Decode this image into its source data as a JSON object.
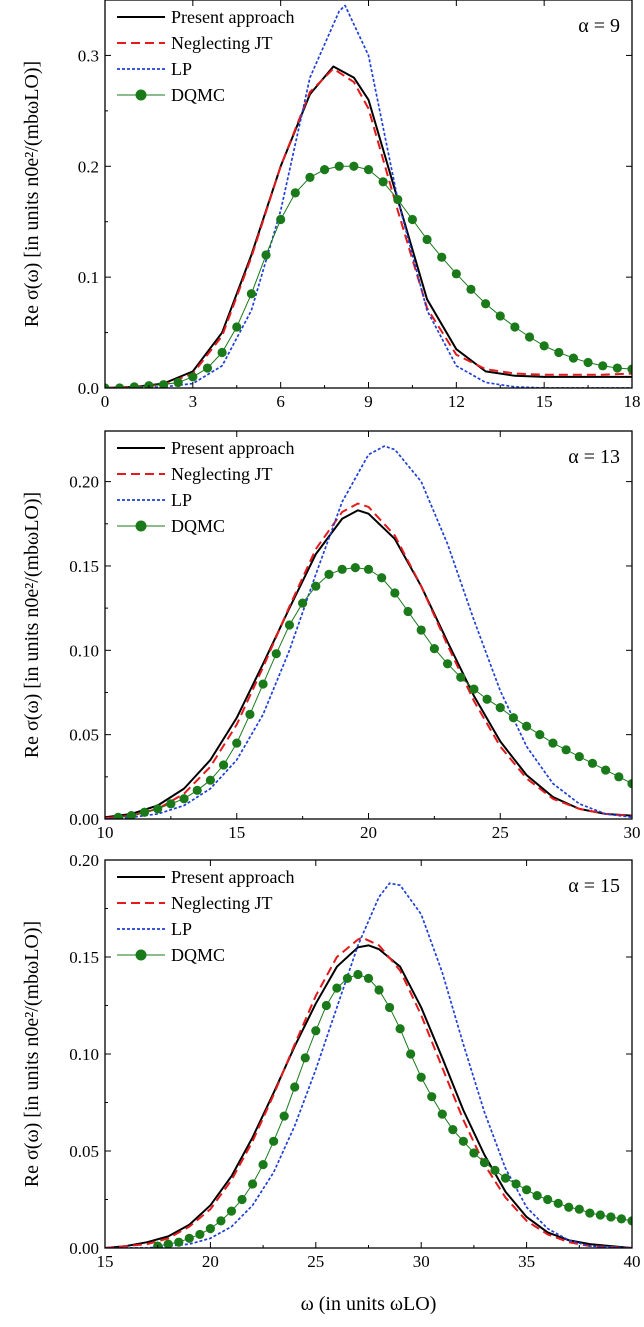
{
  "chart_data": [
    {
      "type": "line",
      "annotation": "α = 9",
      "xlim": [
        0,
        18
      ],
      "ylim": [
        0,
        0.35
      ],
      "xticks": [
        "0",
        "3",
        "6",
        "9",
        "12",
        "15",
        "18"
      ],
      "yticks": [
        "0.0",
        "0.1",
        "0.2",
        "0.3"
      ],
      "ylabel": "Re σ(ω) [in units n0e²/(mbωLO)]",
      "legend": [
        "Present approach",
        "Neglecting JT",
        "LP",
        "DQMC"
      ],
      "series": [
        {
          "name": "Present approach",
          "color": "#000000",
          "style": "solid",
          "x": [
            0,
            1,
            2,
            3,
            4,
            5,
            6,
            7,
            7.8,
            8.5,
            9,
            10,
            11,
            12,
            13,
            14,
            15,
            16,
            17,
            18
          ],
          "y": [
            0,
            0.001,
            0.004,
            0.015,
            0.05,
            0.12,
            0.2,
            0.265,
            0.29,
            0.28,
            0.26,
            0.17,
            0.08,
            0.035,
            0.015,
            0.011,
            0.01,
            0.01,
            0.01,
            0.01
          ]
        },
        {
          "name": "Neglecting JT",
          "color": "#e41a1c",
          "style": "dashed",
          "x": [
            0,
            1,
            2,
            3,
            4,
            5,
            6,
            7,
            7.8,
            8.5,
            9,
            10,
            11,
            12,
            13,
            14,
            15,
            16,
            17,
            18
          ],
          "y": [
            0,
            0.001,
            0.003,
            0.013,
            0.047,
            0.118,
            0.2,
            0.267,
            0.288,
            0.276,
            0.252,
            0.16,
            0.072,
            0.03,
            0.017,
            0.013,
            0.012,
            0.012,
            0.012,
            0.013
          ]
        },
        {
          "name": "LP",
          "color": "#1f3fd6",
          "style": "dotted",
          "x": [
            0,
            1,
            2,
            3,
            4,
            5,
            6,
            7,
            8,
            8.2,
            9,
            10,
            11,
            12,
            13,
            14,
            15,
            16,
            17,
            18
          ],
          "y": [
            0,
            0,
            0.001,
            0.004,
            0.02,
            0.07,
            0.16,
            0.28,
            0.34,
            0.345,
            0.3,
            0.17,
            0.07,
            0.02,
            0.005,
            0.001,
            0,
            0,
            0,
            0
          ]
        },
        {
          "name": "DQMC",
          "color": "#1a7a1a",
          "style": "dots",
          "x": [
            0,
            0.5,
            1,
            1.5,
            2,
            2.5,
            3,
            3.5,
            4,
            4.5,
            5,
            5.5,
            6,
            6.5,
            7,
            7.5,
            8,
            8.5,
            9,
            9.5,
            10,
            10.5,
            11,
            11.5,
            12,
            12.5,
            13,
            13.5,
            14,
            14.5,
            15,
            15.5,
            16,
            16.5,
            17,
            17.5,
            18
          ],
          "y": [
            0,
            0,
            0.001,
            0.002,
            0.003,
            0.005,
            0.01,
            0.018,
            0.032,
            0.055,
            0.085,
            0.12,
            0.152,
            0.176,
            0.19,
            0.197,
            0.2,
            0.2,
            0.197,
            0.186,
            0.17,
            0.152,
            0.134,
            0.118,
            0.103,
            0.089,
            0.076,
            0.065,
            0.055,
            0.046,
            0.038,
            0.032,
            0.027,
            0.023,
            0.02,
            0.018,
            0.017
          ]
        }
      ]
    },
    {
      "type": "line",
      "annotation": "α = 13",
      "xlim": [
        10,
        30
      ],
      "ylim": [
        0,
        0.23
      ],
      "xticks": [
        "10",
        "15",
        "20",
        "25",
        "30"
      ],
      "yticks": [
        "0.00",
        "0.05",
        "0.10",
        "0.15",
        "0.20"
      ],
      "ylabel": "Re σ(ω) [in units n0e²/(mbωLO)]",
      "legend": [
        "Present approach",
        "Neglecting JT",
        "LP",
        "DQMC"
      ],
      "series": [
        {
          "name": "Present approach",
          "color": "#000000",
          "style": "solid",
          "x": [
            10,
            11,
            12,
            13,
            14,
            15,
            16,
            17,
            18,
            19,
            19.6,
            20,
            21,
            22,
            23,
            24,
            25,
            26,
            27,
            28,
            29,
            30
          ],
          "y": [
            0.001,
            0.003,
            0.008,
            0.018,
            0.035,
            0.06,
            0.092,
            0.125,
            0.157,
            0.178,
            0.183,
            0.181,
            0.166,
            0.138,
            0.105,
            0.073,
            0.046,
            0.026,
            0.013,
            0.006,
            0.003,
            0.002
          ]
        },
        {
          "name": "Neglecting JT",
          "color": "#e41a1c",
          "style": "dashed",
          "x": [
            10,
            11,
            12,
            13,
            14,
            15,
            16,
            17,
            18,
            19,
            19.6,
            20,
            21,
            22,
            23,
            24,
            25,
            26,
            27,
            28,
            29,
            30
          ],
          "y": [
            0.0005,
            0.002,
            0.006,
            0.015,
            0.031,
            0.056,
            0.09,
            0.126,
            0.16,
            0.182,
            0.187,
            0.185,
            0.168,
            0.138,
            0.103,
            0.07,
            0.043,
            0.024,
            0.012,
            0.006,
            0.003,
            0.002
          ]
        },
        {
          "name": "LP",
          "color": "#1f3fd6",
          "style": "dotted",
          "x": [
            10,
            11,
            12,
            13,
            14,
            15,
            16,
            17,
            18,
            19,
            20,
            20.6,
            21,
            22,
            23,
            24,
            25,
            26,
            27,
            28,
            29,
            30
          ],
          "y": [
            0,
            0.001,
            0.003,
            0.008,
            0.018,
            0.035,
            0.062,
            0.1,
            0.145,
            0.188,
            0.216,
            0.221,
            0.219,
            0.2,
            0.163,
            0.118,
            0.076,
            0.043,
            0.021,
            0.009,
            0.003,
            0.001
          ]
        },
        {
          "name": "DQMC",
          "color": "#1a7a1a",
          "style": "dots",
          "x": [
            10.5,
            11,
            11.5,
            12,
            12.5,
            13,
            13.5,
            14,
            14.5,
            15,
            15.5,
            16,
            16.5,
            17,
            17.5,
            18,
            18.5,
            19,
            19.5,
            20,
            20.5,
            21,
            21.5,
            22,
            22.5,
            23,
            23.5,
            24,
            24.5,
            25,
            25.5,
            26,
            26.5,
            27,
            27.5,
            28,
            28.5,
            29,
            29.5,
            30
          ],
          "y": [
            0.001,
            0.002,
            0.004,
            0.006,
            0.009,
            0.012,
            0.017,
            0.023,
            0.032,
            0.045,
            0.062,
            0.08,
            0.098,
            0.115,
            0.128,
            0.138,
            0.145,
            0.148,
            0.149,
            0.148,
            0.143,
            0.134,
            0.123,
            0.112,
            0.101,
            0.092,
            0.084,
            0.077,
            0.071,
            0.066,
            0.06,
            0.055,
            0.05,
            0.045,
            0.041,
            0.037,
            0.033,
            0.029,
            0.025,
            0.021
          ]
        }
      ]
    },
    {
      "type": "line",
      "annotation": "α = 15",
      "xlim": [
        15,
        40
      ],
      "ylim": [
        0,
        0.2
      ],
      "xticks": [
        "15",
        "20",
        "25",
        "30",
        "35",
        "40"
      ],
      "yticks": [
        "0.00",
        "0.05",
        "0.10",
        "0.15",
        "0.20"
      ],
      "ylabel": "Re σ(ω) [in units n0e²/(mbωLO)]",
      "xlabel": "ω (in units ωLO)",
      "legend": [
        "Present approach",
        "Neglecting JT",
        "LP",
        "DQMC"
      ],
      "series": [
        {
          "name": "Present approach",
          "color": "#000000",
          "style": "solid",
          "x": [
            15,
            16,
            17,
            18,
            19,
            20,
            21,
            22,
            23,
            24,
            25,
            26,
            27,
            27.5,
            28,
            29,
            30,
            31,
            32,
            33,
            34,
            35,
            36,
            37,
            38,
            39,
            40
          ],
          "y": [
            0,
            0.001,
            0.003,
            0.006,
            0.012,
            0.022,
            0.037,
            0.057,
            0.08,
            0.104,
            0.126,
            0.145,
            0.155,
            0.156,
            0.154,
            0.145,
            0.124,
            0.098,
            0.071,
            0.048,
            0.029,
            0.016,
            0.008,
            0.004,
            0.002,
            0.001,
            0
          ]
        },
        {
          "name": "Neglecting JT",
          "color": "#e41a1c",
          "style": "dashed",
          "x": [
            15,
            16,
            17,
            18,
            19,
            20,
            21,
            22,
            23,
            24,
            25,
            26,
            27,
            27.2,
            28,
            29,
            30,
            31,
            32,
            33,
            34,
            35,
            36,
            37,
            38,
            39,
            40
          ],
          "y": [
            0,
            0.001,
            0.002,
            0.005,
            0.011,
            0.02,
            0.035,
            0.055,
            0.079,
            0.105,
            0.13,
            0.15,
            0.159,
            0.16,
            0.156,
            0.143,
            0.12,
            0.093,
            0.066,
            0.043,
            0.026,
            0.014,
            0.007,
            0.003,
            0.001,
            0.0005,
            0
          ]
        },
        {
          "name": "LP",
          "color": "#1f3fd6",
          "style": "dotted",
          "x": [
            15,
            16,
            17,
            18,
            19,
            20,
            21,
            22,
            23,
            24,
            25,
            26,
            27,
            28,
            28.5,
            29,
            30,
            31,
            32,
            33,
            34,
            35,
            36,
            37,
            38,
            39,
            40
          ],
          "y": [
            0,
            0,
            0,
            0.001,
            0.002,
            0.005,
            0.011,
            0.022,
            0.039,
            0.063,
            0.092,
            0.124,
            0.156,
            0.181,
            0.188,
            0.187,
            0.172,
            0.142,
            0.105,
            0.07,
            0.041,
            0.021,
            0.01,
            0.004,
            0.001,
            0.0005,
            0
          ]
        },
        {
          "name": "DQMC",
          "color": "#1a7a1a",
          "style": "dots",
          "x": [
            17.5,
            18,
            18.5,
            19,
            19.5,
            20,
            20.5,
            21,
            21.5,
            22,
            22.5,
            23,
            23.5,
            24,
            24.5,
            25,
            25.5,
            26,
            26.5,
            27,
            27.5,
            28,
            28.5,
            29,
            29.5,
            30,
            30.5,
            31,
            31.5,
            32,
            32.5,
            33,
            33.5,
            34,
            34.5,
            35,
            35.5,
            36,
            36.5,
            37,
            37.5,
            38,
            38.5,
            39,
            39.5,
            40
          ],
          "y": [
            0.001,
            0.002,
            0.003,
            0.005,
            0.007,
            0.01,
            0.014,
            0.019,
            0.025,
            0.033,
            0.043,
            0.055,
            0.068,
            0.083,
            0.098,
            0.112,
            0.125,
            0.134,
            0.139,
            0.141,
            0.139,
            0.133,
            0.124,
            0.113,
            0.1,
            0.088,
            0.078,
            0.069,
            0.061,
            0.055,
            0.049,
            0.044,
            0.04,
            0.036,
            0.033,
            0.03,
            0.027,
            0.025,
            0.023,
            0.021,
            0.02,
            0.018,
            0.017,
            0.016,
            0.015,
            0.014
          ]
        }
      ]
    }
  ]
}
